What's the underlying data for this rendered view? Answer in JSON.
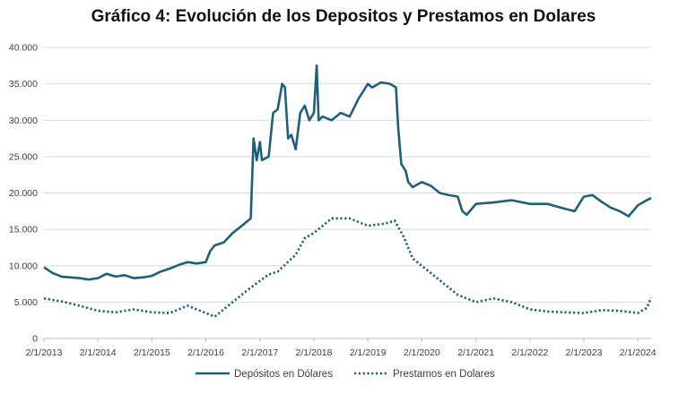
{
  "chart_data": {
    "type": "line",
    "title": "Gráfico 4: Evolución de los Depositos y Prestamos en Dolares",
    "xlabel": "",
    "ylabel": "",
    "xlim": [
      "2013-02-01",
      "2024-05-01"
    ],
    "ylim": [
      0,
      40000
    ],
    "grid": "horizontal",
    "legend_position": "bottom",
    "x_ticks": [
      "2/1/2013",
      "2/1/2014",
      "2/1/2015",
      "2/1/2016",
      "2/1/2017",
      "2/1/2018",
      "2/1/2019",
      "2/1/2020",
      "2/1/2021",
      "2/1/2022",
      "2/1/2023",
      "2/1/2024"
    ],
    "y_ticks": [
      "0",
      "5.000",
      "10.000",
      "15.000",
      "20.000",
      "25.000",
      "30.000",
      "35.000",
      "40.000"
    ],
    "y_tick_values": [
      0,
      5000,
      10000,
      15000,
      20000,
      25000,
      30000,
      35000,
      40000
    ],
    "colors": {
      "series": "#1f5f7a",
      "grid": "#d9d9d9",
      "axis": "#bfbfbf"
    },
    "series": [
      {
        "name": "Depósitos en Dólares",
        "style": "solid",
        "points": [
          [
            "2013-02-01",
            9800
          ],
          [
            "2013-04-01",
            9000
          ],
          [
            "2013-06-01",
            8500
          ],
          [
            "2013-08-01",
            8400
          ],
          [
            "2013-10-01",
            8300
          ],
          [
            "2013-12-01",
            8100
          ],
          [
            "2014-02-01",
            8300
          ],
          [
            "2014-04-01",
            8900
          ],
          [
            "2014-06-01",
            8500
          ],
          [
            "2014-08-01",
            8700
          ],
          [
            "2014-10-01",
            8300
          ],
          [
            "2014-12-01",
            8400
          ],
          [
            "2015-02-01",
            8600
          ],
          [
            "2015-04-01",
            9200
          ],
          [
            "2015-06-01",
            9600
          ],
          [
            "2015-08-01",
            10100
          ],
          [
            "2015-10-01",
            10500
          ],
          [
            "2015-12-01",
            10300
          ],
          [
            "2016-02-01",
            10500
          ],
          [
            "2016-03-01",
            12000
          ],
          [
            "2016-04-01",
            12800
          ],
          [
            "2016-06-01",
            13200
          ],
          [
            "2016-08-01",
            14500
          ],
          [
            "2016-10-01",
            15500
          ],
          [
            "2016-12-01",
            16500
          ],
          [
            "2016-12-20",
            27500
          ],
          [
            "2017-01-10",
            24500
          ],
          [
            "2017-02-01",
            27000
          ],
          [
            "2017-02-15",
            24500
          ],
          [
            "2017-04-01",
            25000
          ],
          [
            "2017-05-01",
            31000
          ],
          [
            "2017-06-01",
            31500
          ],
          [
            "2017-07-01",
            35000
          ],
          [
            "2017-07-20",
            34500
          ],
          [
            "2017-08-10",
            27500
          ],
          [
            "2017-09-01",
            28000
          ],
          [
            "2017-10-01",
            26000
          ],
          [
            "2017-11-01",
            31000
          ],
          [
            "2017-12-01",
            32000
          ],
          [
            "2018-01-01",
            30000
          ],
          [
            "2018-02-01",
            31000
          ],
          [
            "2018-02-20",
            37500
          ],
          [
            "2018-03-05",
            30000
          ],
          [
            "2018-04-01",
            30500
          ],
          [
            "2018-06-01",
            30000
          ],
          [
            "2018-08-01",
            31000
          ],
          [
            "2018-10-01",
            30500
          ],
          [
            "2018-12-01",
            33000
          ],
          [
            "2019-01-01",
            34000
          ],
          [
            "2019-02-01",
            35000
          ],
          [
            "2019-03-01",
            34500
          ],
          [
            "2019-05-01",
            35200
          ],
          [
            "2019-07-01",
            35000
          ],
          [
            "2019-08-10",
            34500
          ],
          [
            "2019-08-25",
            29000
          ],
          [
            "2019-09-15",
            24000
          ],
          [
            "2019-10-15",
            23000
          ],
          [
            "2019-11-01",
            21500
          ],
          [
            "2019-12-01",
            20800
          ],
          [
            "2020-02-01",
            21500
          ],
          [
            "2020-04-01",
            21000
          ],
          [
            "2020-06-01",
            20000
          ],
          [
            "2020-08-01",
            19700
          ],
          [
            "2020-10-01",
            19500
          ],
          [
            "2020-11-01",
            17500
          ],
          [
            "2020-12-01",
            17000
          ],
          [
            "2021-02-01",
            18500
          ],
          [
            "2021-06-01",
            18700
          ],
          [
            "2021-10-01",
            19000
          ],
          [
            "2022-02-01",
            18500
          ],
          [
            "2022-06-01",
            18500
          ],
          [
            "2022-10-01",
            17800
          ],
          [
            "2022-12-01",
            17500
          ],
          [
            "2023-02-01",
            19500
          ],
          [
            "2023-04-01",
            19700
          ],
          [
            "2023-06-01",
            18800
          ],
          [
            "2023-08-01",
            18000
          ],
          [
            "2023-10-01",
            17500
          ],
          [
            "2023-12-01",
            16800
          ],
          [
            "2024-02-01",
            18300
          ],
          [
            "2024-04-01",
            19000
          ],
          [
            "2024-05-01",
            19300
          ]
        ]
      },
      {
        "name": "Prestamos en Dolares",
        "style": "dotted",
        "points": [
          [
            "2013-02-01",
            5500
          ],
          [
            "2013-06-01",
            5100
          ],
          [
            "2013-10-01",
            4500
          ],
          [
            "2014-02-01",
            3800
          ],
          [
            "2014-06-01",
            3600
          ],
          [
            "2014-10-01",
            4000
          ],
          [
            "2015-02-01",
            3600
          ],
          [
            "2015-06-01",
            3500
          ],
          [
            "2015-10-01",
            4500
          ],
          [
            "2016-02-01",
            3500
          ],
          [
            "2016-04-01",
            3000
          ],
          [
            "2016-08-01",
            5000
          ],
          [
            "2016-12-01",
            7000
          ],
          [
            "2017-04-01",
            8800
          ],
          [
            "2017-06-01",
            9200
          ],
          [
            "2017-10-01",
            11500
          ],
          [
            "2017-12-01",
            13800
          ],
          [
            "2018-02-01",
            14500
          ],
          [
            "2018-06-01",
            16500
          ],
          [
            "2018-10-01",
            16500
          ],
          [
            "2019-02-01",
            15500
          ],
          [
            "2019-06-01",
            15800
          ],
          [
            "2019-08-01",
            16200
          ],
          [
            "2019-10-01",
            14000
          ],
          [
            "2019-12-01",
            11000
          ],
          [
            "2020-02-01",
            10000
          ],
          [
            "2020-06-01",
            8000
          ],
          [
            "2020-10-01",
            6000
          ],
          [
            "2021-02-01",
            5000
          ],
          [
            "2021-06-01",
            5500
          ],
          [
            "2021-10-01",
            5000
          ],
          [
            "2022-02-01",
            4000
          ],
          [
            "2022-06-01",
            3700
          ],
          [
            "2022-10-01",
            3600
          ],
          [
            "2023-02-01",
            3500
          ],
          [
            "2023-06-01",
            3900
          ],
          [
            "2023-10-01",
            3800
          ],
          [
            "2024-02-01",
            3500
          ],
          [
            "2024-04-01",
            4200
          ],
          [
            "2024-05-01",
            5600
          ]
        ]
      }
    ]
  }
}
